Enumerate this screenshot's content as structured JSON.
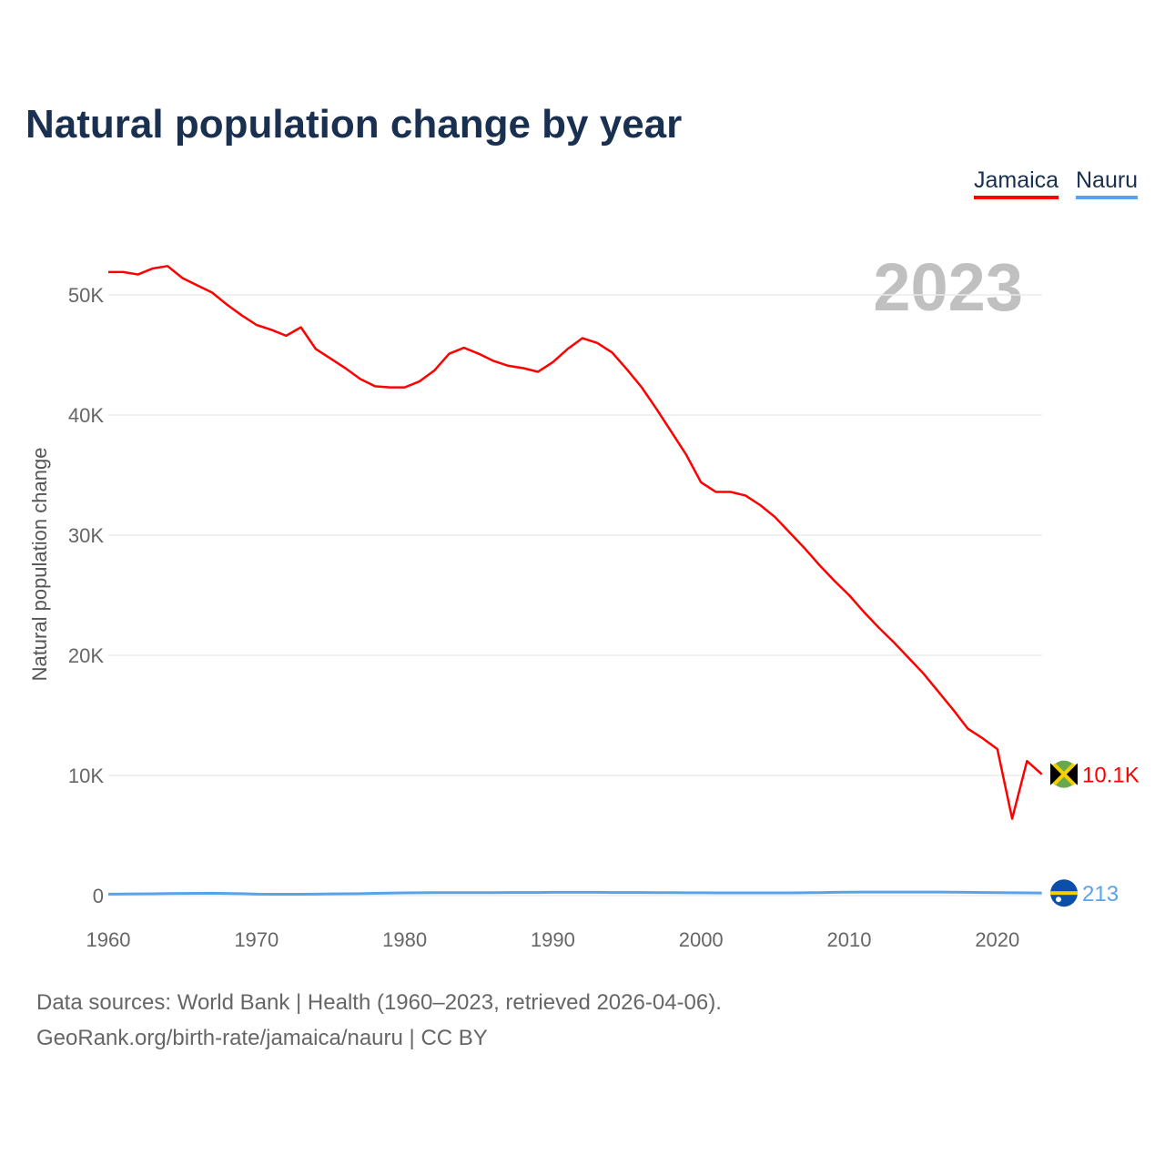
{
  "chart_data": {
    "type": "line",
    "title": "Natural population change by year",
    "ylabel": "Natural population change",
    "xlabel": "",
    "year_label": "2023",
    "xlim": [
      1960,
      2023
    ],
    "ylim": [
      0,
      55000
    ],
    "x_ticks": [
      1960,
      1970,
      1980,
      1990,
      2000,
      2010,
      2020
    ],
    "y_ticks": [
      {
        "v": 0,
        "label": "0"
      },
      {
        "v": 10000,
        "label": "10K"
      },
      {
        "v": 20000,
        "label": "20K"
      },
      {
        "v": 30000,
        "label": "30K"
      },
      {
        "v": 40000,
        "label": "40K"
      },
      {
        "v": 50000,
        "label": "50K"
      }
    ],
    "grid": true,
    "legend_position": "top-right",
    "series": [
      {
        "name": "Jamaica",
        "color": "#ff0000",
        "end_label": "10.1K",
        "flag": "jamaica-flag",
        "values": [
          51900,
          51900,
          51700,
          52200,
          52400,
          51400,
          50800,
          50200,
          49200,
          48300,
          47500,
          47100,
          46600,
          47300,
          45500,
          44700,
          43900,
          43000,
          42400,
          42300,
          42300,
          42800,
          43700,
          45100,
          45600,
          45100,
          44500,
          44100,
          43900,
          43600,
          44400,
          45500,
          46400,
          46000,
          45200,
          43800,
          42300,
          40500,
          38600,
          36700,
          34400,
          33600,
          33600,
          33300,
          32500,
          31500,
          30200,
          28900,
          27500,
          26200,
          25000,
          23600,
          22300,
          21100,
          19800,
          18500,
          17000,
          15500,
          13900,
          13100,
          12200,
          6400,
          11200,
          10100
        ]
      },
      {
        "name": "Nauru",
        "color": "#5ba3e8",
        "end_label": "213",
        "flag": "nauru-flag",
        "values": [
          120,
          130,
          140,
          150,
          170,
          180,
          190,
          200,
          180,
          160,
          120,
          110,
          110,
          110,
          120,
          140,
          150,
          160,
          190,
          210,
          230,
          240,
          250,
          250,
          250,
          250,
          250,
          260,
          260,
          260,
          270,
          270,
          270,
          270,
          260,
          260,
          260,
          250,
          250,
          240,
          240,
          230,
          230,
          230,
          230,
          230,
          230,
          240,
          250,
          270,
          280,
          290,
          290,
          290,
          290,
          290,
          290,
          280,
          270,
          260,
          250,
          240,
          230,
          213
        ]
      }
    ]
  },
  "footer": {
    "line1": "Data sources: World Bank | Health (1960–2023, retrieved 2026-04-06).",
    "line2": "GeoRank.org/birth-rate/jamaica/nauru | CC BY"
  }
}
